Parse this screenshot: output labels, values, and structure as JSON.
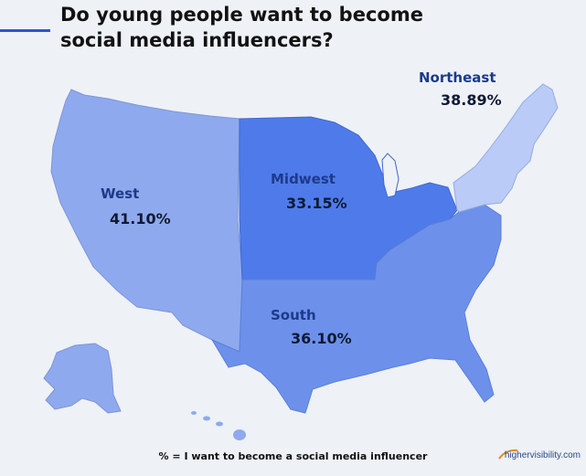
{
  "title": "Do young people want to become social media influencers?",
  "regions": {
    "west": {
      "name": "West",
      "value": "41.10%",
      "color": "#8fa9ee"
    },
    "midwest": {
      "name": "Midwest",
      "value": "33.15%",
      "color": "#4f7bea"
    },
    "south": {
      "name": "South",
      "value": "36.10%",
      "color": "#6d91eb"
    },
    "northeast": {
      "name": "Northeast",
      "value": "38.89%",
      "color": "#b9cbf6"
    }
  },
  "footer_note": "% = I want to become a social media influencer",
  "brand": "highervisibility.com",
  "colors": {
    "accent": "#2b55d6",
    "background": "#eef1f6"
  }
}
